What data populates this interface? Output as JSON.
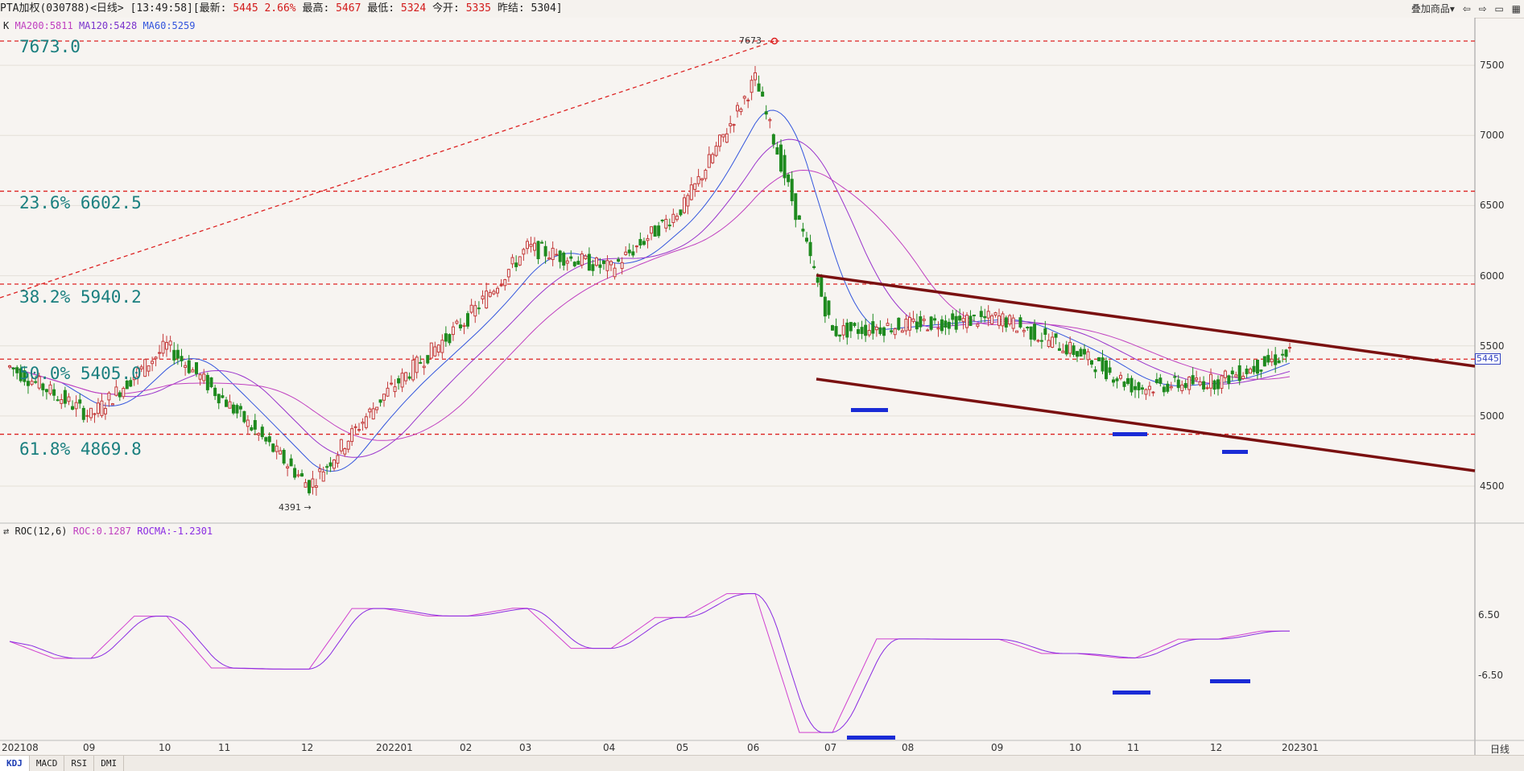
{
  "header": {
    "symbol": "PTA加权(030788)",
    "period": "<日线>",
    "time": "[13:49:58]",
    "latest_label": "[最新:",
    "latest": "5445",
    "change": "2.66%",
    "high_label": "最高:",
    "high": "5467",
    "low_label": "最低:",
    "low": "5324",
    "open_label": "今开:",
    "open": "5335",
    "prev_label": "昨结:",
    "prev": "5304]",
    "overlay_button": "叠加商品▾"
  },
  "ma_legend": {
    "k": "K",
    "ma200": "MA200:5811",
    "ma120": "MA120:5428",
    "ma60": "MA60:5259"
  },
  "roc_legend": {
    "name": "ROC(12,6)",
    "roc": "ROC:0.1287",
    "rocma": "ROCMA:-1.2301"
  },
  "fib_labels": {
    "top": "7673.0",
    "f236": "23.6% 6602.5",
    "f382": "38.2% 5940.2",
    "f500": "50.0% 5405.0",
    "f618": "61.8% 4869.8"
  },
  "annotations": {
    "peak": "7673",
    "trough": "4391 →"
  },
  "price_axis": [
    "7500",
    "7000",
    "6500",
    "6000",
    "5500",
    "5000",
    "4500"
  ],
  "roc_axis": [
    "6.50",
    "-6.50"
  ],
  "current_price_tag": "5445",
  "x_axis": [
    "202108",
    "09",
    "10",
    "11",
    "12",
    "202201",
    "02",
    "03",
    "04",
    "05",
    "06",
    "07",
    "08",
    "09",
    "10",
    "11",
    "12",
    "202301"
  ],
  "x_axis_period": "日线",
  "bottom_tabs": [
    "KDJ",
    "MACD",
    "RSI",
    "DMI"
  ],
  "colors": {
    "up": "#c43a3a",
    "down": "#1e8a1e",
    "ma60": "#3355dd",
    "ma120": "#9933cc",
    "ma200": "#c040c0",
    "fib": "#dd2222",
    "channel": "#7a1010",
    "marker": "#1a2bd6"
  },
  "chart_data": {
    "type": "line",
    "title": "PTA加权(030788)",
    "price_scale": {
      "min": 4391,
      "max": 7673
    },
    "fibonacci_levels": [
      {
        "label": "7673.0",
        "value": 7673.0
      },
      {
        "label": "23.6%",
        "value": 6602.5
      },
      {
        "label": "38.2%",
        "value": 5940.2
      },
      {
        "label": "50.0%",
        "value": 5405.0
      },
      {
        "label": "61.8%",
        "value": 4869.8
      }
    ],
    "close_series": [
      {
        "date": "2021-08",
        "close": 5350
      },
      {
        "date": "2021-09",
        "close": 5000
      },
      {
        "date": "2021-10",
        "close": 5500
      },
      {
        "date": "2021-11",
        "close": 5100
      },
      {
        "date": "2021-12",
        "close": 4500
      },
      {
        "date": "2022-01",
        "close": 5150
      },
      {
        "date": "2022-02",
        "close": 5700
      },
      {
        "date": "2022-03",
        "close": 6200
      },
      {
        "date": "2022-04",
        "close": 6050
      },
      {
        "date": "2022-05",
        "close": 6500
      },
      {
        "date": "2022-06",
        "close": 7400
      },
      {
        "date": "2022-07",
        "close": 5600
      },
      {
        "date": "2022-08",
        "close": 5650
      },
      {
        "date": "2022-09",
        "close": 5700
      },
      {
        "date": "2022-10",
        "close": 5450
      },
      {
        "date": "2022-11",
        "close": 5200
      },
      {
        "date": "2022-12",
        "close": 5250
      },
      {
        "date": "2023-01",
        "close": 5445
      }
    ],
    "moving_averages": [
      {
        "name": "MA200",
        "last": 5811
      },
      {
        "name": "MA120",
        "last": 5428
      },
      {
        "name": "MA60",
        "last": 5259
      }
    ],
    "roc": {
      "period": [
        12,
        6
      ],
      "roc": 0.1287,
      "rocma": -1.2301
    }
  }
}
